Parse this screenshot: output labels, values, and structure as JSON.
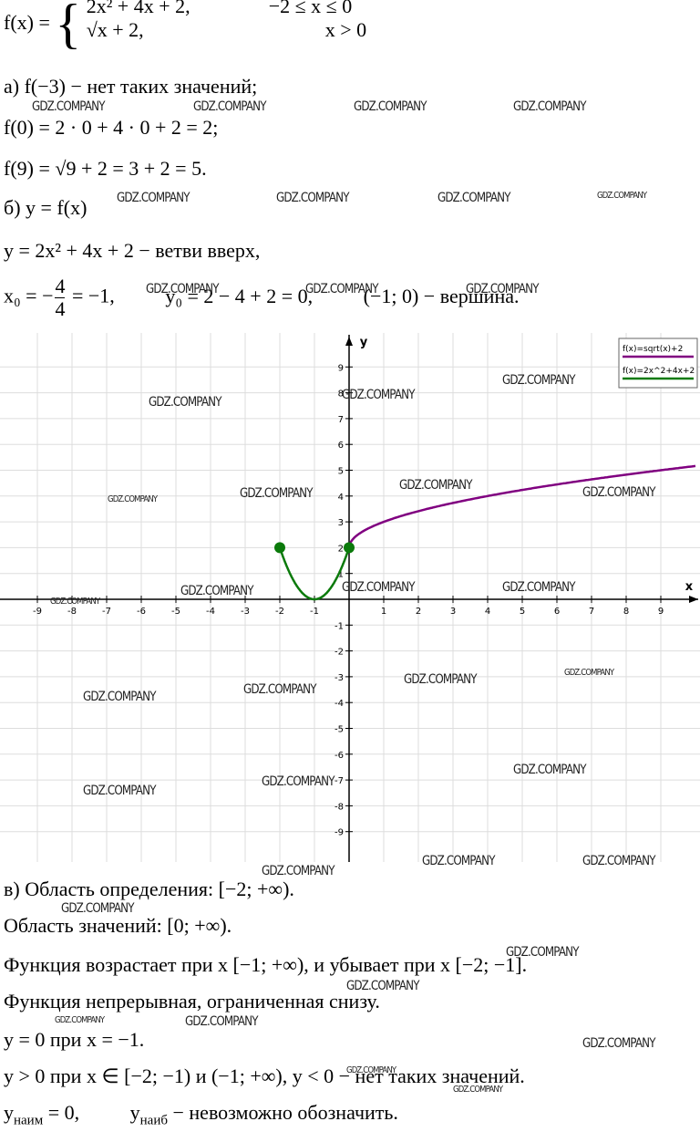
{
  "piecewise": {
    "lhs": "f(x) =",
    "row1_expr": "2x² + 4x + 2,",
    "row1_cond": "−2 ≤ x ≤ 0",
    "row2_expr": "√x + 2,",
    "row2_cond": "x > 0"
  },
  "top_lines": [
    "а) f(−3) − нет таких значений;",
    "f(0) = 2 · 0 + 4 · 0 + 2 = 2;",
    "f(9) = √9 + 2 = 3 + 2 = 5.",
    "б) y = f(x)",
    "y = 2x² + 4x + 2 − ветви вверх,"
  ],
  "vertex": {
    "start": "x₀ = −",
    "num": "4",
    "den": "4",
    "end": "= −1,",
    "y0": "y₀ = 2 − 4 + 2 = 0,",
    "point": "(−1; 0) − вершина."
  },
  "bottom_lines": [
    "в) Область определения: [−2; +∞).",
    "Область значений: [0; +∞).",
    "Функция возрастает при x [−1; +∞), и убывает при x [−2; −1].",
    "Функция непрерывная, ограниченная снизу.",
    "y = 0 при x = −1.",
    "y > 0 при x ∈ [−2; −1) и (−1; +∞), y < 0 − нет таких значений."
  ],
  "extremes": {
    "y1": "y",
    "sub1": "наим",
    "rest1": " = 0,",
    "y2": "y",
    "sub2": "наиб",
    "rest2": " − невозможно обозначить."
  },
  "watermark": "GDZ.COMPANY",
  "chart_data": {
    "type": "function-plot",
    "x_label": "x",
    "y_label": "y",
    "xlim": [
      -10,
      10
    ],
    "ylim": [
      -10,
      10
    ],
    "xticks": [
      -9,
      -8,
      -7,
      -6,
      -5,
      -4,
      -3,
      -2,
      -1,
      1,
      2,
      3,
      4,
      5,
      6,
      7,
      8,
      9
    ],
    "yticks": [
      -9,
      -8,
      -7,
      -6,
      -5,
      -4,
      -3,
      -2,
      -1,
      1,
      2,
      3,
      4,
      5,
      6,
      7,
      8,
      9
    ],
    "grid": true,
    "legend": "upper right",
    "series": [
      {
        "name": "f(x)=sqrt(x)+2",
        "color": "#800080"
      },
      {
        "name": "f(x)=2x^2+4x+2",
        "color": "#0b7a0b"
      }
    ],
    "points": {
      "x": [
        -2,
        0
      ],
      "values": [
        2,
        2
      ],
      "color": "#0b7a0b"
    }
  }
}
